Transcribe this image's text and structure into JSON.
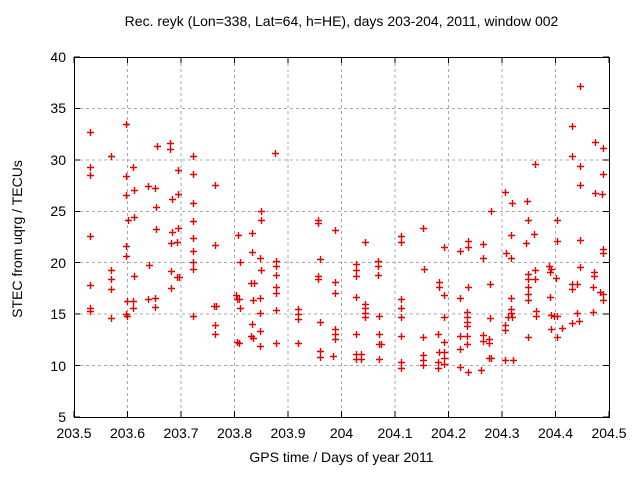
{
  "chart_data": {
    "type": "scatter",
    "title": "Rec. reyk (Lon=338, Lat=64, h=HE), days 203-204, 2011, window 002",
    "xlabel": "GPS time / Days of year 2011",
    "ylabel": "STEC from uqrg / TECUs",
    "xlim": [
      203.5,
      204.5
    ],
    "ylim": [
      5,
      40
    ],
    "x_ticks": [
      203.5,
      203.6,
      203.7,
      203.8,
      203.9,
      204,
      204.1,
      204.2,
      204.3,
      204.4,
      204.5
    ],
    "x_tick_labels": [
      "203.5",
      "203.6",
      "203.7",
      "203.8",
      "203.9",
      "204",
      "204.1",
      "204.2",
      "204.3",
      "204.4",
      "204.5"
    ],
    "y_ticks": [
      5,
      10,
      15,
      20,
      25,
      30,
      35,
      40
    ],
    "y_tick_labels": [
      "5",
      "10",
      "15",
      "20",
      "25",
      "30",
      "35",
      "40"
    ],
    "grid": true,
    "legend_position": "none",
    "marker": "plus",
    "marker_color": "#e60000",
    "grid_color": "#a8a8a8",
    "frame_color": "#000000",
    "series": [
      {
        "name": "STEC",
        "points": [
          [
            203.529,
            32.7
          ],
          [
            203.598,
            33.5
          ],
          [
            203.57,
            30.4
          ],
          [
            203.655,
            31.3
          ],
          [
            203.679,
            31.6
          ],
          [
            203.679,
            31.1
          ],
          [
            203.723,
            30.4
          ],
          [
            203.529,
            29.3
          ],
          [
            203.529,
            28.5
          ],
          [
            203.61,
            29.3
          ],
          [
            203.598,
            28.4
          ],
          [
            203.695,
            29.0
          ],
          [
            203.723,
            28.6
          ],
          [
            203.638,
            27.5
          ],
          [
            203.651,
            27.3
          ],
          [
            203.612,
            27.1
          ],
          [
            203.598,
            26.6
          ],
          [
            203.684,
            26.2
          ],
          [
            203.695,
            26.7
          ],
          [
            203.723,
            25.8
          ],
          [
            203.654,
            25.4
          ],
          [
            203.601,
            24.2
          ],
          [
            203.612,
            24.4
          ],
          [
            203.723,
            24.1
          ],
          [
            203.654,
            23.3
          ],
          [
            203.684,
            23.0
          ],
          [
            203.695,
            23.4
          ],
          [
            203.529,
            22.6
          ],
          [
            203.723,
            22.4
          ],
          [
            203.876,
            30.7
          ],
          [
            203.764,
            27.6
          ],
          [
            203.849,
            25.0
          ],
          [
            203.849,
            24.2
          ],
          [
            203.833,
            22.9
          ],
          [
            203.807,
            22.7
          ],
          [
            203.957,
            24.2
          ],
          [
            203.957,
            23.9
          ],
          [
            203.987,
            23.2
          ],
          [
            204.152,
            23.4
          ],
          [
            204.112,
            22.6
          ],
          [
            204.112,
            22.0
          ],
          [
            204.445,
            37.2
          ],
          [
            204.431,
            33.3
          ],
          [
            204.473,
            31.7
          ],
          [
            204.488,
            31.2
          ],
          [
            204.43,
            30.4
          ],
          [
            204.445,
            29.4
          ],
          [
            204.488,
            28.6
          ],
          [
            204.445,
            27.6
          ],
          [
            204.473,
            26.8
          ],
          [
            204.487,
            26.7
          ],
          [
            204.362,
            29.6
          ],
          [
            204.306,
            26.9
          ],
          [
            204.319,
            25.8
          ],
          [
            204.346,
            26.0
          ],
          [
            204.279,
            25.0
          ],
          [
            204.348,
            24.2
          ],
          [
            204.403,
            24.2
          ],
          [
            204.317,
            22.7
          ],
          [
            204.36,
            22.8
          ],
          [
            203.598,
            21.6
          ],
          [
            203.598,
            20.7
          ],
          [
            203.681,
            21.9
          ],
          [
            203.693,
            22.0
          ],
          [
            203.722,
            21.1
          ],
          [
            203.722,
            20.1
          ],
          [
            203.722,
            19.4
          ],
          [
            203.57,
            19.3
          ],
          [
            203.57,
            18.4
          ],
          [
            203.57,
            17.4
          ],
          [
            203.529,
            17.8
          ],
          [
            203.612,
            18.7
          ],
          [
            203.64,
            19.8
          ],
          [
            203.681,
            19.2
          ],
          [
            203.692,
            18.6
          ],
          [
            203.697,
            18.6
          ],
          [
            203.681,
            17.5
          ],
          [
            203.599,
            16.3
          ],
          [
            203.611,
            16.3
          ],
          [
            203.638,
            16.5
          ],
          [
            203.651,
            16.6
          ],
          [
            203.651,
            15.7
          ],
          [
            203.611,
            15.6
          ],
          [
            203.529,
            15.6
          ],
          [
            203.529,
            15.3
          ],
          [
            203.597,
            15.0
          ],
          [
            203.6,
            14.8
          ],
          [
            203.57,
            14.6
          ],
          [
            203.722,
            14.8
          ],
          [
            203.764,
            21.7
          ],
          [
            203.833,
            21.0
          ],
          [
            203.847,
            20.5
          ],
          [
            203.81,
            20.1
          ],
          [
            203.877,
            20.2
          ],
          [
            203.877,
            19.7
          ],
          [
            203.85,
            19.3
          ],
          [
            203.877,
            18.8
          ],
          [
            203.831,
            18.0
          ],
          [
            203.836,
            18.0
          ],
          [
            203.877,
            17.6
          ],
          [
            203.877,
            17.1
          ],
          [
            203.803,
            16.9
          ],
          [
            203.805,
            16.5
          ],
          [
            203.809,
            16.5
          ],
          [
            203.835,
            16.4
          ],
          [
            203.847,
            16.6
          ],
          [
            203.762,
            15.8
          ],
          [
            203.766,
            15.8
          ],
          [
            203.81,
            15.6
          ],
          [
            203.847,
            15.1
          ],
          [
            203.877,
            15.4
          ],
          [
            203.918,
            15.5
          ],
          [
            203.918,
            15.0
          ],
          [
            203.918,
            14.5
          ],
          [
            203.959,
            20.4
          ],
          [
            203.957,
            18.7
          ],
          [
            203.957,
            18.4
          ],
          [
            203.987,
            18.1
          ],
          [
            203.987,
            17.1
          ],
          [
            203.959,
            14.2
          ],
          [
            203.987,
            13.6
          ],
          [
            203.987,
            13.1
          ],
          [
            203.987,
            12.6
          ],
          [
            203.764,
            13.9
          ],
          [
            203.764,
            13.1
          ],
          [
            203.832,
            14.0
          ],
          [
            203.847,
            13.4
          ],
          [
            203.831,
            12.9
          ],
          [
            203.835,
            12.7
          ],
          [
            203.805,
            12.3
          ],
          [
            203.808,
            12.2
          ],
          [
            203.847,
            11.9
          ],
          [
            203.877,
            12.2
          ],
          [
            203.918,
            12.2
          ],
          [
            203.959,
            11.4
          ],
          [
            203.959,
            10.8
          ],
          [
            203.985,
            10.9
          ],
          [
            204.043,
            22.0
          ],
          [
            204.192,
            21.5
          ],
          [
            204.222,
            21.1
          ],
          [
            204.236,
            21.5
          ],
          [
            204.236,
            22.1
          ],
          [
            204.027,
            19.9
          ],
          [
            204.027,
            19.3
          ],
          [
            204.027,
            18.7
          ],
          [
            204.068,
            20.2
          ],
          [
            204.068,
            19.7
          ],
          [
            204.068,
            18.8
          ],
          [
            204.154,
            19.4
          ],
          [
            204.182,
            18.1
          ],
          [
            204.182,
            17.6
          ],
          [
            204.192,
            16.9
          ],
          [
            204.236,
            17.6
          ],
          [
            204.222,
            16.6
          ],
          [
            204.027,
            16.7
          ],
          [
            204.043,
            16.0
          ],
          [
            204.043,
            15.6
          ],
          [
            204.043,
            15.1
          ],
          [
            204.043,
            14.7
          ],
          [
            204.07,
            14.8
          ],
          [
            204.112,
            16.5
          ],
          [
            204.112,
            15.6
          ],
          [
            204.112,
            14.7
          ],
          [
            204.192,
            14.7
          ],
          [
            204.234,
            15.2
          ],
          [
            204.234,
            14.7
          ],
          [
            204.234,
            14.2
          ],
          [
            204.234,
            13.8
          ],
          [
            204.027,
            13.1
          ],
          [
            204.07,
            13.1
          ],
          [
            204.07,
            12.1
          ],
          [
            204.073,
            12.1
          ],
          [
            204.07,
            10.6
          ],
          [
            204.027,
            11.1
          ],
          [
            204.037,
            11.1
          ],
          [
            204.027,
            10.6
          ],
          [
            204.037,
            10.6
          ],
          [
            204.112,
            12.9
          ],
          [
            204.152,
            12.8
          ],
          [
            204.181,
            13.1
          ],
          [
            204.192,
            12.3
          ],
          [
            204.182,
            11.3
          ],
          [
            204.191,
            11.3
          ],
          [
            204.222,
            12.9
          ],
          [
            204.234,
            12.9
          ],
          [
            204.222,
            11.6
          ],
          [
            204.234,
            12.1
          ],
          [
            204.152,
            11.0
          ],
          [
            204.152,
            10.5
          ],
          [
            204.152,
            10.1
          ],
          [
            204.181,
            10.3
          ],
          [
            204.181,
            9.8
          ],
          [
            204.192,
            10.7
          ],
          [
            204.192,
            10.2
          ],
          [
            204.222,
            9.9
          ],
          [
            204.236,
            9.4
          ],
          [
            204.112,
            10.3
          ],
          [
            204.112,
            9.8
          ],
          [
            204.265,
            21.8
          ],
          [
            204.265,
            20.5
          ],
          [
            204.307,
            20.9
          ],
          [
            204.317,
            20.5
          ],
          [
            204.445,
            22.2
          ],
          [
            204.403,
            22.1
          ],
          [
            204.345,
            21.9
          ],
          [
            204.488,
            21.3
          ],
          [
            204.488,
            20.9
          ],
          [
            204.445,
            19.6
          ],
          [
            204.472,
            19.1
          ],
          [
            204.472,
            18.7
          ],
          [
            204.278,
            17.9
          ],
          [
            204.348,
            18.9
          ],
          [
            204.362,
            19.3
          ],
          [
            204.348,
            18.4
          ],
          [
            204.362,
            18.4
          ],
          [
            204.388,
            19.7
          ],
          [
            204.392,
            19.4
          ],
          [
            204.39,
            19.1
          ],
          [
            204.401,
            18.5
          ],
          [
            204.348,
            17.6
          ],
          [
            204.348,
            17.0
          ],
          [
            204.317,
            16.6
          ],
          [
            204.348,
            16.4
          ],
          [
            204.43,
            17.9
          ],
          [
            204.441,
            17.9
          ],
          [
            204.43,
            17.4
          ],
          [
            204.471,
            17.6
          ],
          [
            204.483,
            17.2
          ],
          [
            204.488,
            17.0
          ],
          [
            204.488,
            16.4
          ],
          [
            204.39,
            16.7
          ],
          [
            204.317,
            15.5
          ],
          [
            204.317,
            15.1
          ],
          [
            204.364,
            15.3
          ],
          [
            204.364,
            14.8
          ],
          [
            204.44,
            15.1
          ],
          [
            204.47,
            15.2
          ],
          [
            204.278,
            14.6
          ],
          [
            204.312,
            14.7
          ],
          [
            204.318,
            14.7
          ],
          [
            204.392,
            14.9
          ],
          [
            204.398,
            14.8
          ],
          [
            204.403,
            14.8
          ],
          [
            204.43,
            14.1
          ],
          [
            204.443,
            14.3
          ],
          [
            204.412,
            13.7
          ],
          [
            204.306,
            13.9
          ],
          [
            204.306,
            13.5
          ],
          [
            204.391,
            13.6
          ],
          [
            204.265,
            13.0
          ],
          [
            204.276,
            12.6
          ],
          [
            204.265,
            12.4
          ],
          [
            204.276,
            12.2
          ],
          [
            204.348,
            12.8
          ],
          [
            204.403,
            12.8
          ],
          [
            204.275,
            10.7
          ],
          [
            204.28,
            10.7
          ],
          [
            204.306,
            10.5
          ],
          [
            204.32,
            10.5
          ],
          [
            204.26,
            9.6
          ]
        ]
      }
    ]
  }
}
